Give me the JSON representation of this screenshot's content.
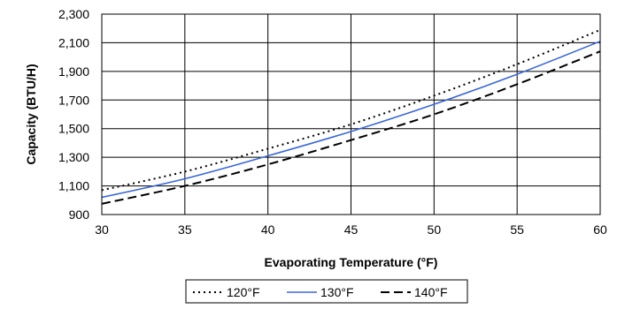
{
  "chart_data": {
    "type": "line",
    "title": "",
    "xlabel": "Evaporating Temperature (°F)",
    "ylabel": "Capacity (BTU/H)",
    "xlim": [
      30,
      60
    ],
    "ylim": [
      900,
      2300
    ],
    "x_ticks": [
      "30",
      "35",
      "40",
      "45",
      "50",
      "55",
      "60"
    ],
    "y_ticks": [
      "900",
      "1,100",
      "1,300",
      "1,500",
      "1,700",
      "1,900",
      "2,100",
      "2,300"
    ],
    "grid": true,
    "legend_position": "bottom",
    "x": [
      30,
      35,
      40,
      45,
      50,
      55,
      60
    ],
    "series": [
      {
        "name": "120°F",
        "style": "dotted",
        "color": "#000000",
        "values": [
          1070,
          1200,
          1360,
          1530,
          1730,
          1950,
          2190
        ]
      },
      {
        "name": "130°F",
        "style": "solid",
        "color": "#3a66d6",
        "values": [
          1020,
          1150,
          1310,
          1480,
          1670,
          1880,
          2110
        ]
      },
      {
        "name": "140°F",
        "style": "dashed",
        "color": "#000000",
        "values": [
          975,
          1100,
          1250,
          1420,
          1600,
          1810,
          2040
        ]
      }
    ]
  }
}
